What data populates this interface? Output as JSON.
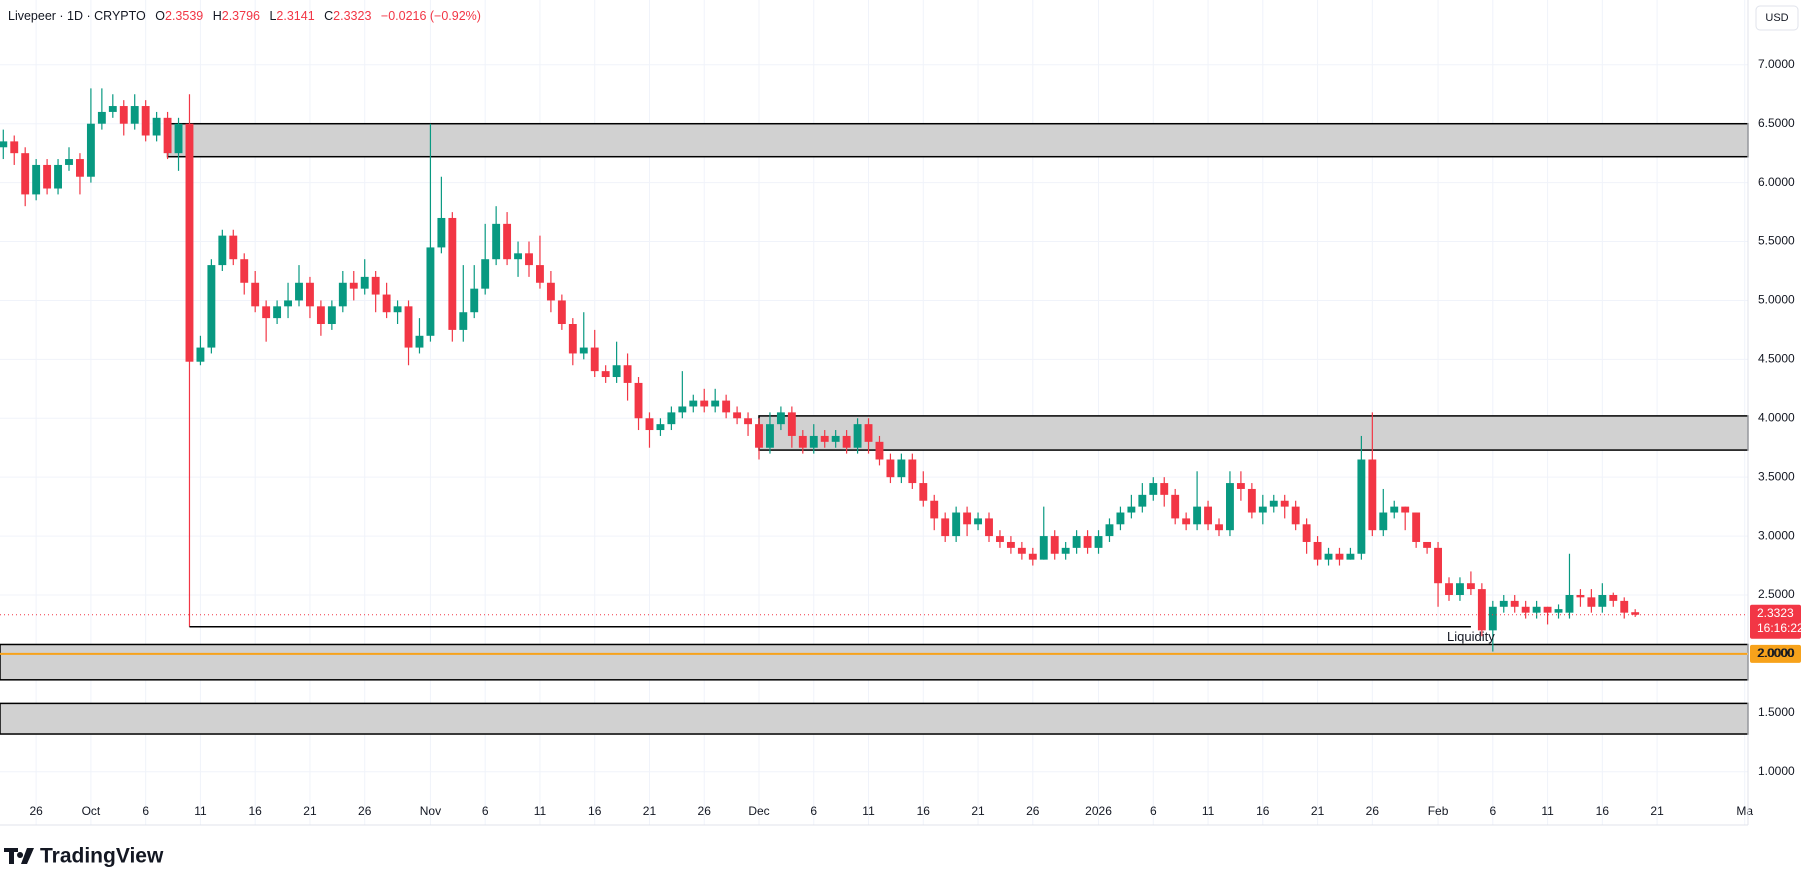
{
  "chart_data": {
    "type": "candlestick",
    "title": "Livepeer · 1D · CRYPTO",
    "ohlc_labels": [
      "O",
      "H",
      "L",
      "C"
    ],
    "change_label": "−0.0216 (−0.92%)",
    "currency": "USD",
    "countdown": "16:16:22",
    "brand": "TradingView",
    "up_color": "#089981",
    "down_color": "#f23645",
    "open": [
      6.3,
      6.35,
      6.25,
      5.9,
      6.15,
      5.95,
      6.15,
      6.2,
      6.05,
      6.5,
      6.6,
      6.65,
      6.5,
      6.65,
      6.4,
      6.55,
      6.25,
      6.5,
      4.48,
      4.6,
      5.3,
      5.55,
      5.35,
      5.15,
      4.95,
      4.85,
      4.95,
      5.0,
      5.15,
      4.95,
      4.8,
      4.95,
      5.15,
      5.1,
      5.2,
      5.05,
      4.9,
      4.95,
      4.6,
      4.7,
      5.45,
      5.7,
      4.75,
      4.9,
      5.1,
      5.35,
      5.65,
      5.35,
      5.4,
      5.3,
      5.15,
      5.0,
      4.8,
      4.55,
      4.6,
      4.4,
      4.35,
      4.45,
      4.3,
      4.0,
      3.9,
      3.95,
      4.05,
      4.1,
      4.15,
      4.1,
      4.15,
      4.05,
      4.0,
      3.95,
      3.75,
      3.95,
      4.05,
      3.85,
      3.75,
      3.85,
      3.8,
      3.85,
      3.75,
      3.95,
      3.8,
      3.65,
      3.5,
      3.65,
      3.45,
      3.3,
      3.15,
      3.0,
      3.2,
      3.1,
      3.15,
      3.0,
      2.95,
      2.9,
      2.85,
      2.8,
      3.0,
      2.85,
      2.9,
      3.0,
      2.9,
      3.0,
      3.1,
      3.2,
      3.25,
      3.35,
      3.45,
      3.35,
      3.15,
      3.1,
      3.25,
      3.1,
      3.05,
      3.45,
      3.4,
      3.2,
      3.25,
      3.3,
      3.25,
      3.1,
      2.95,
      2.8,
      2.85,
      2.8,
      2.85,
      3.65,
      3.05,
      3.2,
      3.25,
      3.2,
      2.95,
      2.9,
      2.6,
      2.5,
      2.6,
      2.55,
      2.2,
      2.4,
      2.45,
      2.4,
      2.35,
      2.4,
      2.35,
      2.35,
      2.5,
      2.48,
      2.4,
      2.5,
      2.45,
      2.3539
    ],
    "high": [
      6.45,
      6.4,
      6.3,
      6.2,
      6.2,
      6.2,
      6.3,
      6.25,
      6.8,
      6.8,
      6.75,
      6.7,
      6.75,
      6.7,
      6.6,
      6.6,
      6.55,
      6.75,
      4.7,
      5.35,
      5.6,
      5.6,
      5.4,
      5.25,
      5.0,
      5.0,
      5.15,
      5.3,
      5.2,
      5.0,
      5.0,
      5.25,
      5.25,
      5.35,
      5.25,
      5.15,
      5.0,
      5.0,
      4.85,
      6.5,
      6.05,
      5.75,
      5.3,
      5.3,
      5.65,
      5.8,
      5.75,
      5.5,
      5.5,
      5.55,
      5.25,
      5.05,
      4.85,
      4.9,
      4.75,
      4.45,
      4.65,
      4.55,
      4.35,
      4.05,
      4.0,
      4.1,
      4.4,
      4.2,
      4.25,
      4.25,
      4.2,
      4.1,
      4.05,
      4.0,
      4.05,
      4.1,
      4.1,
      3.9,
      3.95,
      3.9,
      3.9,
      3.9,
      4.0,
      4.0,
      3.85,
      3.7,
      3.7,
      3.7,
      3.55,
      3.35,
      3.2,
      3.25,
      3.25,
      3.2,
      3.2,
      3.05,
      3.0,
      2.95,
      2.9,
      3.25,
      3.05,
      2.95,
      3.05,
      3.05,
      3.05,
      3.15,
      3.25,
      3.35,
      3.45,
      3.5,
      3.5,
      3.4,
      3.2,
      3.55,
      3.3,
      3.15,
      3.55,
      3.55,
      3.45,
      3.35,
      3.35,
      3.35,
      3.3,
      3.15,
      3.0,
      2.9,
      2.9,
      2.9,
      3.85,
      4.05,
      3.4,
      3.3,
      3.25,
      3.2,
      2.95,
      2.95,
      2.65,
      2.65,
      2.7,
      2.6,
      2.45,
      2.5,
      2.5,
      2.45,
      2.45,
      2.4,
      2.42,
      2.85,
      2.55,
      2.55,
      2.6,
      2.52,
      2.48,
      2.3796
    ],
    "low": [
      6.2,
      6.15,
      5.8,
      5.85,
      5.9,
      5.9,
      6.1,
      5.9,
      6.0,
      6.45,
      6.55,
      6.4,
      6.45,
      6.35,
      6.35,
      6.2,
      6.1,
      2.23,
      4.45,
      4.55,
      5.25,
      5.3,
      5.05,
      4.9,
      4.65,
      4.8,
      4.85,
      4.95,
      4.85,
      4.7,
      4.75,
      4.9,
      5.0,
      5.05,
      4.9,
      4.85,
      4.8,
      4.45,
      4.55,
      4.65,
      5.4,
      4.65,
      4.65,
      4.85,
      5.05,
      5.3,
      5.3,
      5.2,
      5.2,
      5.1,
      4.9,
      4.75,
      4.45,
      4.5,
      4.35,
      4.3,
      4.3,
      4.15,
      3.9,
      3.75,
      3.85,
      3.9,
      4.0,
      4.05,
      4.05,
      4.05,
      4.0,
      3.95,
      3.85,
      3.65,
      3.7,
      3.9,
      3.75,
      3.7,
      3.7,
      3.75,
      3.75,
      3.7,
      3.7,
      3.7,
      3.6,
      3.45,
      3.45,
      3.4,
      3.25,
      3.05,
      2.95,
      2.95,
      3.0,
      3.05,
      2.95,
      2.9,
      2.85,
      2.8,
      2.75,
      2.8,
      2.8,
      2.8,
      2.85,
      2.85,
      2.85,
      2.95,
      3.05,
      3.15,
      3.2,
      3.3,
      3.25,
      3.1,
      3.05,
      3.05,
      3.05,
      3.0,
      3.0,
      3.3,
      3.15,
      3.1,
      3.2,
      3.15,
      3.05,
      2.85,
      2.75,
      2.75,
      2.75,
      2.8,
      2.8,
      3.0,
      3.0,
      3.15,
      3.05,
      2.9,
      2.85,
      2.4,
      2.45,
      2.45,
      2.5,
      2.15,
      2.02,
      2.35,
      2.35,
      2.3,
      2.3,
      2.25,
      2.3,
      2.3,
      2.4,
      2.35,
      2.35,
      2.4,
      2.3,
      2.3141
    ],
    "close": [
      6.35,
      6.25,
      5.9,
      6.15,
      5.95,
      6.15,
      6.2,
      6.05,
      6.5,
      6.6,
      6.65,
      6.5,
      6.65,
      6.4,
      6.55,
      6.25,
      6.5,
      4.48,
      4.6,
      5.3,
      5.55,
      5.35,
      5.15,
      4.95,
      4.85,
      4.95,
      5.0,
      5.15,
      4.95,
      4.8,
      4.95,
      5.15,
      5.1,
      5.2,
      5.05,
      4.9,
      4.95,
      4.6,
      4.7,
      5.45,
      5.7,
      4.75,
      4.9,
      5.1,
      5.35,
      5.65,
      5.35,
      5.4,
      5.3,
      5.15,
      5.0,
      4.8,
      4.55,
      4.6,
      4.4,
      4.35,
      4.45,
      4.3,
      4.0,
      3.9,
      3.95,
      4.05,
      4.1,
      4.15,
      4.1,
      4.15,
      4.05,
      4.0,
      3.95,
      3.75,
      3.95,
      4.05,
      3.85,
      3.75,
      3.85,
      3.8,
      3.85,
      3.75,
      3.95,
      3.8,
      3.65,
      3.5,
      3.65,
      3.45,
      3.3,
      3.15,
      3.0,
      3.2,
      3.1,
      3.15,
      3.0,
      2.95,
      2.9,
      2.85,
      2.8,
      3.0,
      2.85,
      2.9,
      3.0,
      2.9,
      3.0,
      3.1,
      3.2,
      3.25,
      3.35,
      3.45,
      3.35,
      3.15,
      3.1,
      3.25,
      3.1,
      3.05,
      3.45,
      3.4,
      3.2,
      3.25,
      3.3,
      3.25,
      3.1,
      2.95,
      2.8,
      2.85,
      2.8,
      2.85,
      3.65,
      3.05,
      3.2,
      3.25,
      3.2,
      2.95,
      2.9,
      2.6,
      2.5,
      2.6,
      2.55,
      2.2,
      2.4,
      2.45,
      2.4,
      2.35,
      2.4,
      2.35,
      2.38,
      2.5,
      2.48,
      2.4,
      2.5,
      2.45,
      2.35,
      2.3323
    ],
    "xlim": [
      -0.3,
      159.3
    ],
    "xticks": [
      {
        "value": 3,
        "label": "26"
      },
      {
        "value": 8,
        "label": "Oct"
      },
      {
        "value": 13,
        "label": "6"
      },
      {
        "value": 18,
        "label": "11"
      },
      {
        "value": 23,
        "label": "16"
      },
      {
        "value": 28,
        "label": "21"
      },
      {
        "value": 33,
        "label": "26"
      },
      {
        "value": 39,
        "label": "Nov"
      },
      {
        "value": 44,
        "label": "6"
      },
      {
        "value": 49,
        "label": "11"
      },
      {
        "value": 54,
        "label": "16"
      },
      {
        "value": 59,
        "label": "21"
      },
      {
        "value": 64,
        "label": "26"
      },
      {
        "value": 69,
        "label": "Dec"
      },
      {
        "value": 74,
        "label": "6"
      },
      {
        "value": 79,
        "label": "11"
      },
      {
        "value": 84,
        "label": "16"
      },
      {
        "value": 89,
        "label": "21"
      },
      {
        "value": 94,
        "label": "26"
      },
      {
        "value": 100,
        "label": "2026"
      },
      {
        "value": 105,
        "label": "6"
      },
      {
        "value": 110,
        "label": "11"
      },
      {
        "value": 115,
        "label": "16"
      },
      {
        "value": 120,
        "label": "21"
      },
      {
        "value": 125,
        "label": "26"
      },
      {
        "value": 131,
        "label": "Feb"
      },
      {
        "value": 136,
        "label": "6"
      },
      {
        "value": 141,
        "label": "11"
      },
      {
        "value": 146,
        "label": "16"
      },
      {
        "value": 151,
        "label": "21"
      },
      {
        "value": 159,
        "label": "Ma"
      }
    ],
    "ylim": [
      0.76,
      7.55
    ],
    "yticks": [
      {
        "value": 1,
        "label": "1.0000"
      },
      {
        "value": 1.5,
        "label": "1.5000"
      },
      {
        "value": 2,
        "label": "2.0000"
      },
      {
        "value": 2.5,
        "label": "2.5000"
      },
      {
        "value": 3,
        "label": "3.0000"
      },
      {
        "value": 3.5,
        "label": "3.5000"
      },
      {
        "value": 4,
        "label": "4.0000"
      },
      {
        "value": 4.5,
        "label": "4.5000"
      },
      {
        "value": 5,
        "label": "5.0000"
      },
      {
        "value": 5.5,
        "label": "5.5000"
      },
      {
        "value": 6,
        "label": "6.0000"
      },
      {
        "value": 6.5,
        "label": "6.5000"
      },
      {
        "value": 7,
        "label": "7.0000"
      }
    ],
    "grid": true,
    "zones": [
      {
        "from": 6.22,
        "to": 6.5,
        "start": 15
      },
      {
        "from": 3.73,
        "to": 4.02,
        "start": 69
      },
      {
        "from": 1.78,
        "to": 2.08
      },
      {
        "from": 1.32,
        "to": 1.58
      }
    ],
    "support_line": {
      "value": 2.23,
      "start": 17,
      "end": 134
    },
    "level": {
      "value": 2,
      "label": "2.0000",
      "color": "#f7a21b"
    },
    "annotation": {
      "text": "Liquidity",
      "x": 134,
      "y": 2.14
    }
  }
}
